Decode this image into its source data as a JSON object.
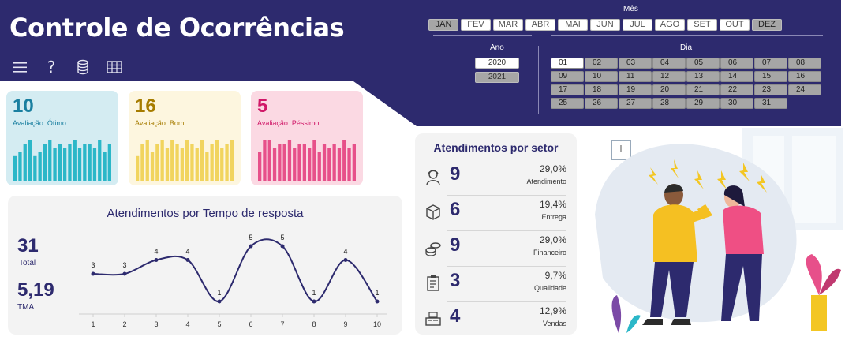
{
  "title": "Controle de Ocorrências",
  "toolbar": {
    "icons": [
      "menu-icon",
      "help-icon",
      "database-icon",
      "table-icon"
    ]
  },
  "slicers": {
    "month_label": "Mês",
    "months": [
      "JAN",
      "FEV",
      "MAR",
      "ABR",
      "MAI",
      "JUN",
      "JUL",
      "AGO",
      "SET",
      "OUT",
      "DEZ"
    ],
    "months_selected": [
      "JAN",
      "DEZ"
    ],
    "year_label": "Ano",
    "years": [
      "2020",
      "2021"
    ],
    "years_selected": [
      "2021"
    ],
    "day_label": "Dia",
    "days": [
      "01",
      "02",
      "03",
      "04",
      "05",
      "06",
      "07",
      "08",
      "09",
      "10",
      "11",
      "12",
      "13",
      "14",
      "15",
      "16",
      "17",
      "18",
      "19",
      "20",
      "21",
      "22",
      "23",
      "24",
      "25",
      "26",
      "27",
      "28",
      "29",
      "30",
      "31"
    ],
    "days_highlighted": [
      "01"
    ]
  },
  "cards": [
    {
      "value": "10",
      "label": "Avaliação: Ótimo",
      "bg": "#d4ecf2",
      "color": "#1a7fa0",
      "bar_color": "#2bb7c8",
      "bars": [
        6,
        7,
        9,
        10,
        6,
        7,
        9,
        10,
        8,
        9,
        8,
        9,
        10,
        8,
        9,
        9,
        8,
        10,
        7,
        9
      ]
    },
    {
      "value": "16",
      "label": "Avaliação:  Bom",
      "bg": "#fdf6df",
      "color": "#a67c00",
      "bar_color": "#f1d45e",
      "bars": [
        6,
        9,
        10,
        7,
        9,
        10,
        8,
        10,
        9,
        8,
        10,
        9,
        8,
        10,
        7,
        9,
        10,
        8,
        9,
        10
      ]
    },
    {
      "value": "5",
      "label": "Avaliação: Péssimo",
      "bg": "#fbd9e3",
      "color": "#d01868",
      "bar_color": "#e7508a",
      "bars": [
        7,
        10,
        10,
        8,
        9,
        9,
        10,
        8,
        9,
        9,
        8,
        10,
        7,
        9,
        8,
        9,
        8,
        10,
        8,
        9
      ]
    }
  ],
  "tempo": {
    "title": "Atendimentos por Tempo de resposta",
    "total_value": "31",
    "total_label": "Total",
    "tma_value": "5,19",
    "tma_label": "TMA"
  },
  "chart_data": {
    "type": "line",
    "title": "Atendimentos por Tempo de resposta",
    "categories": [
      "1",
      "2",
      "3",
      "4",
      "5",
      "6",
      "7",
      "8",
      "9",
      "10"
    ],
    "values": [
      3,
      3,
      4,
      4,
      1,
      5,
      5,
      1,
      4,
      1
    ],
    "ylim": [
      0,
      6
    ],
    "grid": false
  },
  "setores": {
    "title": "Atendimentos por setor",
    "rows": [
      {
        "icon": "agent-icon",
        "value": "9",
        "pct": "29,0%",
        "name": "Atendimento"
      },
      {
        "icon": "box-icon",
        "value": "6",
        "pct": "19,4%",
        "name": "Entrega"
      },
      {
        "icon": "coins-icon",
        "value": "9",
        "pct": "29,0%",
        "name": "Financeiro"
      },
      {
        "icon": "checklist-icon",
        "value": "3",
        "pct": "9,7%",
        "name": "Qualidade"
      },
      {
        "icon": "cash-register-icon",
        "value": "4",
        "pct": "12,9%",
        "name": "Vendas"
      }
    ]
  },
  "colors": {
    "header": "#2d2a6e",
    "accent": "#2d2a6e"
  }
}
